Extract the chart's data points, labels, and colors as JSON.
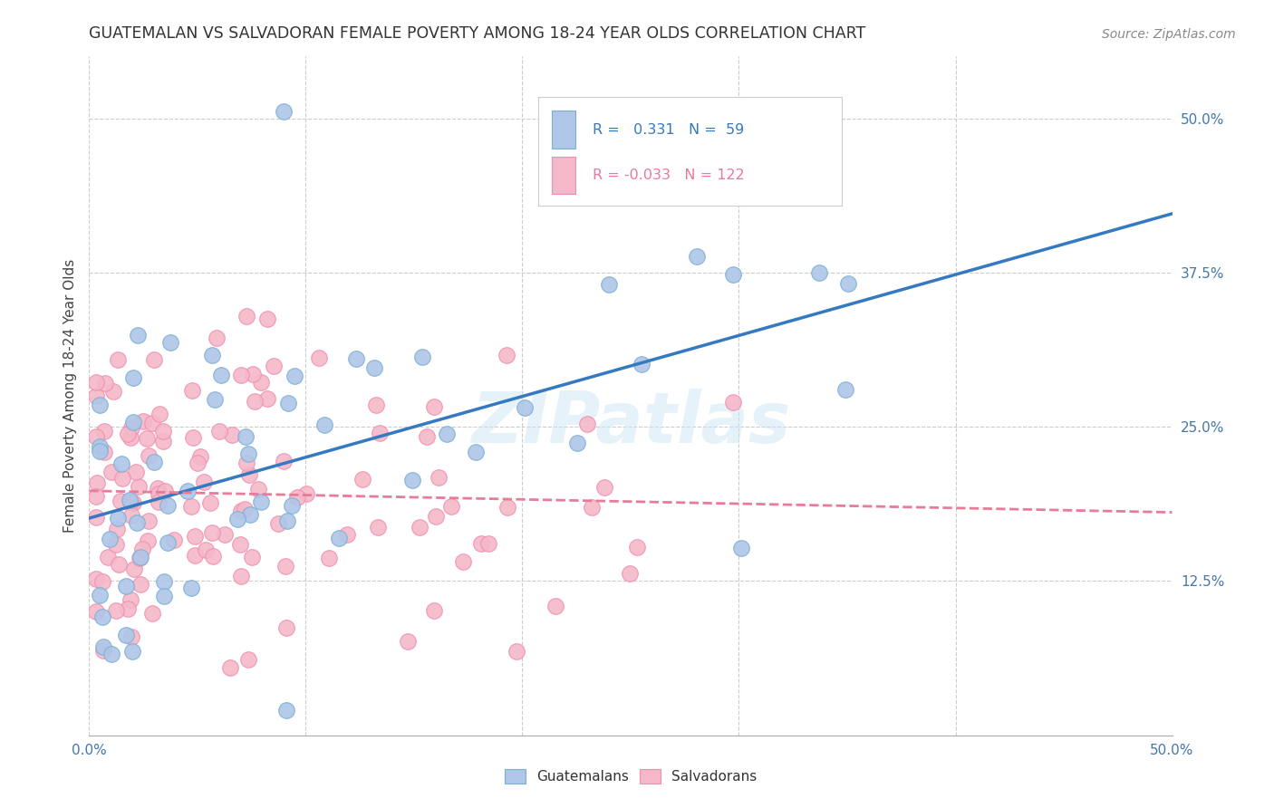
{
  "title": "GUATEMALAN VS SALVADORAN FEMALE POVERTY AMONG 18-24 YEAR OLDS CORRELATION CHART",
  "source": "Source: ZipAtlas.com",
  "ylabel": "Female Poverty Among 18-24 Year Olds",
  "xlim": [
    0,
    0.5
  ],
  "ylim": [
    0,
    0.55
  ],
  "xticks": [
    0.0,
    0.1,
    0.2,
    0.3,
    0.4,
    0.5
  ],
  "ytick_labels_right": [
    "50.0%",
    "37.5%",
    "25.0%",
    "12.5%"
  ],
  "ytick_vals_right": [
    0.5,
    0.375,
    0.25,
    0.125
  ],
  "guatemalan_color": "#aec6e8",
  "salvadoran_color": "#f4b8c8",
  "guatemalan_edge": "#7bafd4",
  "salvadoran_edge": "#f090b0",
  "regression_guatemalan_color": "#3579c0",
  "regression_salvadoran_color": "#e87a9a",
  "watermark": "ZIPatlas",
  "legend_R_guatemalan": "0.331",
  "legend_N_guatemalan": "59",
  "legend_R_salvadoran": "-0.033",
  "legend_N_salvadoran": "122",
  "background_color": "#ffffff",
  "grid_color": "#cccccc"
}
